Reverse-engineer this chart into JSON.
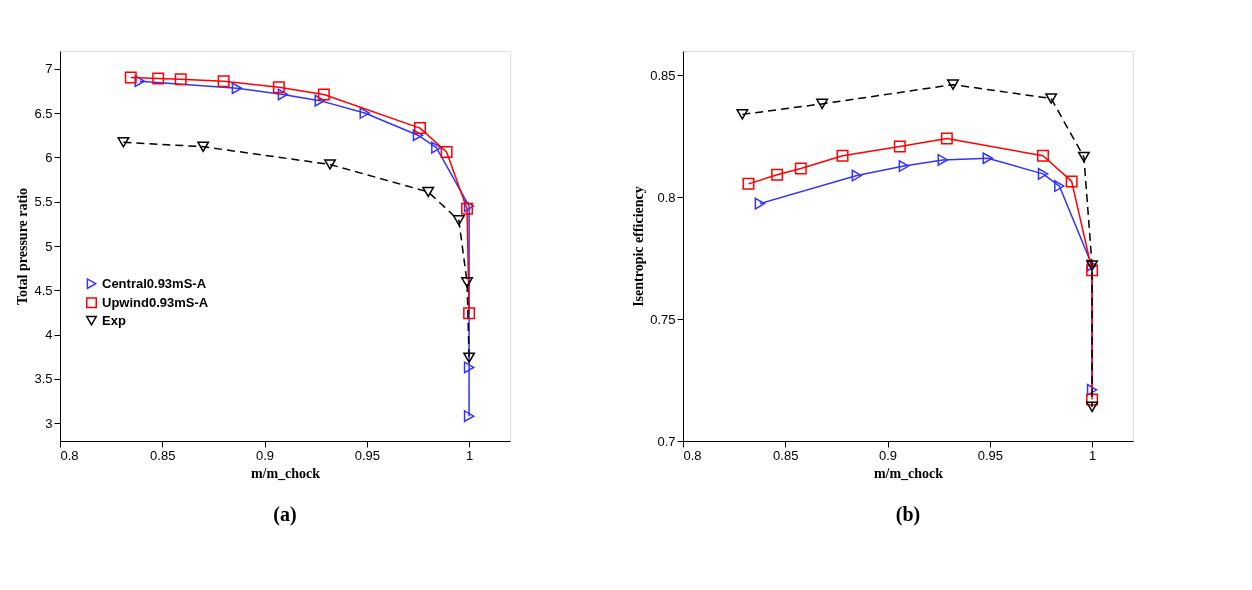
{
  "chart_data": [
    {
      "type": "line",
      "xlabel": "m/m_chock",
      "ylabel": "Total pressure ratio",
      "xlim": [
        0.8,
        1.02
      ],
      "ylim": [
        2.8,
        7.2
      ],
      "xticks": [
        0.8,
        0.85,
        0.9,
        0.95,
        1
      ],
      "yticks": [
        3,
        3.5,
        4,
        4.5,
        5,
        5.5,
        6,
        6.5,
        7
      ],
      "grid": false,
      "legend": "center left",
      "annotations": [
        "(a)"
      ],
      "series": [
        {
          "name": "Central0.93mS-A",
          "color": "#3333ff",
          "marker": "triangle-right",
          "line_style": "solid",
          "x": [
            0.839,
            0.8865,
            0.909,
            0.927,
            0.949,
            0.975,
            0.984,
            1.0,
            1.0,
            1.0
          ],
          "values": [
            6.86,
            6.78,
            6.71,
            6.64,
            6.5,
            6.25,
            6.11,
            5.45,
            3.63,
            3.08
          ]
        },
        {
          "name": "Upwind0.93mS-A",
          "color": "#ff0000",
          "marker": "square",
          "line_style": "solid",
          "x": [
            0.8346,
            0.848,
            0.859,
            0.88,
            0.907,
            0.929,
            0.976,
            0.989,
            0.999,
            1.0
          ],
          "values": [
            6.9,
            6.89,
            6.88,
            6.86,
            6.79,
            6.71,
            6.33,
            6.06,
            5.42,
            4.24
          ]
        },
        {
          "name": "Exp",
          "color": "#000000",
          "marker": "triangle-down",
          "line_style": "dashed",
          "x": [
            0.831,
            0.87,
            0.932,
            0.98,
            0.995,
            0.999,
            1.0
          ],
          "values": [
            6.17,
            6.12,
            5.92,
            5.61,
            5.29,
            4.59,
            3.74
          ]
        }
      ]
    },
    {
      "type": "line",
      "xlabel": "m/m_chock",
      "ylabel": "Isentropic efficiency",
      "xlim": [
        0.8,
        1.02
      ],
      "ylim": [
        0.7,
        0.86
      ],
      "xticks": [
        0.8,
        0.85,
        0.9,
        0.95,
        1
      ],
      "yticks": [
        0.7,
        0.75,
        0.8,
        0.85
      ],
      "grid": false,
      "legend": "center left",
      "annotations": [
        "(b)"
      ],
      "series": [
        {
          "name": "Central0.93mS-A",
          "color": "#3333ff",
          "marker": "triangle-right",
          "line_style": "solid",
          "x": [
            0.8376,
            0.885,
            0.908,
            0.927,
            0.949,
            0.976,
            0.984,
            1.0,
            1.0
          ],
          "values": [
            0.7974,
            0.8089,
            0.8128,
            0.8153,
            0.816,
            0.8096,
            0.8046,
            0.772,
            0.721
          ]
        },
        {
          "name": "Upwind0.93mS-A",
          "color": "#ff0000",
          "marker": "square",
          "line_style": "solid",
          "x": [
            0.832,
            0.846,
            0.8576,
            0.878,
            0.906,
            0.929,
            0.976,
            0.99,
            1.0,
            1.0
          ],
          "values": [
            0.8055,
            0.8092,
            0.8118,
            0.817,
            0.8208,
            0.8241,
            0.817,
            0.8065,
            0.77,
            0.717
          ]
        },
        {
          "name": "Exp",
          "color": "#000000",
          "marker": "triangle-down",
          "line_style": "dashed",
          "x": [
            0.829,
            0.868,
            0.932,
            0.98,
            0.996,
            1.0,
            1.0
          ],
          "values": [
            0.834,
            0.8383,
            0.8462,
            0.8405,
            0.8165,
            0.772,
            0.714
          ]
        }
      ]
    }
  ]
}
